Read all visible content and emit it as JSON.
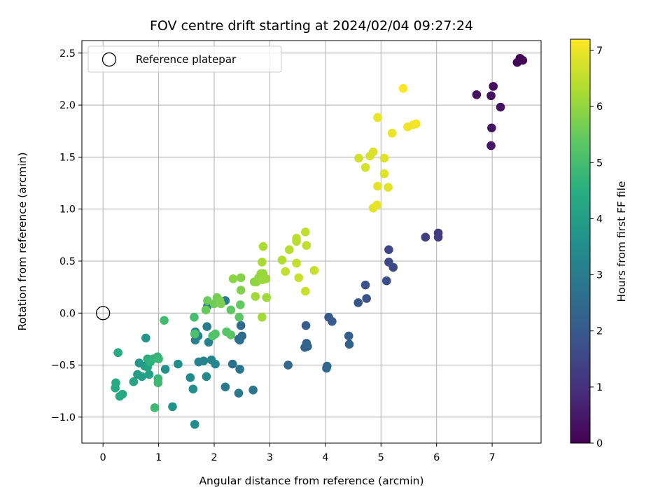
{
  "chart_data": {
    "type": "scatter",
    "title": "FOV centre drift starting at 2024/02/04 09:27:24",
    "xlabel": "Angular distance from reference (arcmin)",
    "ylabel": "Rotation from reference (arcmin)",
    "xlim": [
      -0.38,
      7.88
    ],
    "ylim": [
      -1.25,
      2.62
    ],
    "xticks": [
      0,
      1,
      2,
      3,
      4,
      5,
      6,
      7
    ],
    "yticks": [
      -1.0,
      -0.5,
      0.0,
      0.5,
      1.0,
      1.5,
      2.0,
      2.5
    ],
    "xtick_labels": [
      "0",
      "1",
      "2",
      "3",
      "4",
      "5",
      "6",
      "7"
    ],
    "ytick_labels": [
      "−1.0",
      "−0.5",
      "0.0",
      "0.5",
      "1.0",
      "1.5",
      "2.0",
      "2.5"
    ],
    "grid": true,
    "colormap": "viridis",
    "colorbar": {
      "label": "Hours from first FF file",
      "range": [
        0,
        7.2
      ],
      "ticks": [
        0,
        1,
        2,
        3,
        4,
        5,
        6,
        7
      ],
      "tick_labels": [
        "0",
        "1",
        "2",
        "3",
        "4",
        "5",
        "6",
        "7"
      ]
    },
    "legend": {
      "label": "Reference platepar",
      "position": "upper-left"
    },
    "reference_point": {
      "x": 0,
      "y": 0
    },
    "points": [
      {
        "x": 7.5,
        "y": 2.45,
        "h": 0.0
      },
      {
        "x": 7.55,
        "y": 2.43,
        "h": 0.05
      },
      {
        "x": 7.45,
        "y": 2.41,
        "h": 0.1
      },
      {
        "x": 7.02,
        "y": 2.18,
        "h": 0.2
      },
      {
        "x": 6.72,
        "y": 2.1,
        "h": 0.25
      },
      {
        "x": 6.98,
        "y": 2.09,
        "h": 0.3
      },
      {
        "x": 7.15,
        "y": 1.98,
        "h": 0.35
      },
      {
        "x": 6.99,
        "y": 1.78,
        "h": 0.4
      },
      {
        "x": 6.98,
        "y": 1.61,
        "h": 0.45
      },
      {
        "x": 6.03,
        "y": 0.77,
        "h": 1.2
      },
      {
        "x": 6.03,
        "y": 0.73,
        "h": 1.25
      },
      {
        "x": 5.8,
        "y": 0.73,
        "h": 1.3
      },
      {
        "x": 5.14,
        "y": 0.61,
        "h": 1.5
      },
      {
        "x": 5.14,
        "y": 0.49,
        "h": 1.55
      },
      {
        "x": 5.22,
        "y": 0.44,
        "h": 1.6
      },
      {
        "x": 5.1,
        "y": 0.31,
        "h": 1.7
      },
      {
        "x": 4.72,
        "y": 0.27,
        "h": 1.8
      },
      {
        "x": 4.74,
        "y": 0.14,
        "h": 1.85
      },
      {
        "x": 4.59,
        "y": 0.1,
        "h": 1.9
      },
      {
        "x": 4.06,
        "y": -0.04,
        "h": 2.0
      },
      {
        "x": 4.12,
        "y": -0.08,
        "h": 2.05
      },
      {
        "x": 3.65,
        "y": -0.12,
        "h": 2.1
      },
      {
        "x": 4.42,
        "y": -0.22,
        "h": 2.15
      },
      {
        "x": 4.43,
        "y": -0.3,
        "h": 2.2
      },
      {
        "x": 3.66,
        "y": -0.29,
        "h": 2.25
      },
      {
        "x": 3.68,
        "y": -0.32,
        "h": 2.3
      },
      {
        "x": 3.63,
        "y": -0.33,
        "h": 2.3
      },
      {
        "x": 3.33,
        "y": -0.5,
        "h": 2.35
      },
      {
        "x": 4.03,
        "y": -0.51,
        "h": 2.4
      },
      {
        "x": 4.02,
        "y": -0.53,
        "h": 2.45
      },
      {
        "x": 2.48,
        "y": -0.12,
        "h": 2.5
      },
      {
        "x": 2.5,
        "y": -0.22,
        "h": 2.55
      },
      {
        "x": 2.44,
        "y": -0.25,
        "h": 2.6
      },
      {
        "x": 2.46,
        "y": -0.26,
        "h": 2.6
      },
      {
        "x": 2.33,
        "y": -0.49,
        "h": 2.7
      },
      {
        "x": 2.46,
        "y": -0.54,
        "h": 2.75
      },
      {
        "x": 2.7,
        "y": -0.74,
        "h": 2.8
      },
      {
        "x": 2.44,
        "y": -0.77,
        "h": 2.85
      },
      {
        "x": 2.2,
        "y": -0.71,
        "h": 2.9
      },
      {
        "x": 2.2,
        "y": 0.12,
        "h": 2.95
      },
      {
        "x": 1.88,
        "y": 0.07,
        "h": 3.0
      },
      {
        "x": 1.87,
        "y": -0.13,
        "h": 3.0
      },
      {
        "x": 1.66,
        "y": -0.18,
        "h": 3.05
      },
      {
        "x": 1.71,
        "y": -0.22,
        "h": 3.1
      },
      {
        "x": 1.66,
        "y": -0.26,
        "h": 3.1
      },
      {
        "x": 1.9,
        "y": -0.28,
        "h": 3.15
      },
      {
        "x": 1.72,
        "y": -0.47,
        "h": 3.2
      },
      {
        "x": 1.81,
        "y": -0.46,
        "h": 3.2
      },
      {
        "x": 1.95,
        "y": -0.45,
        "h": 3.25
      },
      {
        "x": 2.02,
        "y": -0.49,
        "h": 3.3
      },
      {
        "x": 1.86,
        "y": -0.61,
        "h": 3.35
      },
      {
        "x": 1.57,
        "y": -0.62,
        "h": 3.4
      },
      {
        "x": 1.65,
        "y": -1.07,
        "h": 3.45
      },
      {
        "x": 1.35,
        "y": -0.49,
        "h": 3.5
      },
      {
        "x": 1.62,
        "y": -0.73,
        "h": 3.55
      },
      {
        "x": 1.12,
        "y": -0.54,
        "h": 3.6
      },
      {
        "x": 1.25,
        "y": -0.9,
        "h": 3.65
      },
      {
        "x": 0.77,
        "y": -0.24,
        "h": 3.75
      },
      {
        "x": 0.65,
        "y": -0.48,
        "h": 3.85
      },
      {
        "x": 0.75,
        "y": -0.51,
        "h": 3.9
      },
      {
        "x": 0.62,
        "y": -0.59,
        "h": 3.95
      },
      {
        "x": 0.7,
        "y": -0.61,
        "h": 4.0
      },
      {
        "x": 0.83,
        "y": -0.59,
        "h": 4.1
      },
      {
        "x": 0.8,
        "y": -0.52,
        "h": 4.15
      },
      {
        "x": 0.55,
        "y": -0.66,
        "h": 4.2
      },
      {
        "x": 0.35,
        "y": -0.78,
        "h": 4.25
      },
      {
        "x": 0.3,
        "y": -0.8,
        "h": 4.3
      },
      {
        "x": 0.22,
        "y": -0.72,
        "h": 4.35
      },
      {
        "x": 0.23,
        "y": -0.67,
        "h": 4.4
      },
      {
        "x": 0.27,
        "y": -0.38,
        "h": 4.45
      },
      {
        "x": 0.8,
        "y": -0.44,
        "h": 4.55
      },
      {
        "x": 0.85,
        "y": -0.47,
        "h": 4.6
      },
      {
        "x": 0.9,
        "y": -0.44,
        "h": 4.65
      },
      {
        "x": 0.98,
        "y": -0.42,
        "h": 4.7
      },
      {
        "x": 1.0,
        "y": -0.44,
        "h": 4.75
      },
      {
        "x": 0.99,
        "y": -0.63,
        "h": 4.8
      },
      {
        "x": 0.99,
        "y": -0.67,
        "h": 4.85
      },
      {
        "x": 0.93,
        "y": -0.91,
        "h": 4.9
      },
      {
        "x": 1.1,
        "y": -0.07,
        "h": 4.95
      },
      {
        "x": 1.64,
        "y": -0.04,
        "h": 5.0
      },
      {
        "x": 1.65,
        "y": -0.2,
        "h": 5.1
      },
      {
        "x": 1.97,
        "y": -0.22,
        "h": 5.15
      },
      {
        "x": 2.02,
        "y": -0.2,
        "h": 5.2
      },
      {
        "x": 2.22,
        "y": -0.18,
        "h": 5.25
      },
      {
        "x": 2.3,
        "y": -0.21,
        "h": 5.3
      },
      {
        "x": 2.45,
        "y": -0.04,
        "h": 5.35
      },
      {
        "x": 2.3,
        "y": 0.03,
        "h": 5.4
      },
      {
        "x": 2.47,
        "y": 0.08,
        "h": 5.45
      },
      {
        "x": 1.85,
        "y": 0.03,
        "h": 5.5
      },
      {
        "x": 1.88,
        "y": 0.12,
        "h": 5.55
      },
      {
        "x": 2.0,
        "y": 0.09,
        "h": 5.6
      },
      {
        "x": 2.05,
        "y": 0.15,
        "h": 5.65
      },
      {
        "x": 2.1,
        "y": 0.12,
        "h": 5.7
      },
      {
        "x": 2.12,
        "y": 0.09,
        "h": 5.75
      },
      {
        "x": 2.48,
        "y": 0.22,
        "h": 5.8
      },
      {
        "x": 2.48,
        "y": 0.34,
        "h": 5.85
      },
      {
        "x": 2.34,
        "y": 0.33,
        "h": 5.9
      },
      {
        "x": 2.72,
        "y": 0.3,
        "h": 5.95
      },
      {
        "x": 2.76,
        "y": 0.3,
        "h": 5.95
      },
      {
        "x": 2.8,
        "y": 0.34,
        "h": 6.0
      },
      {
        "x": 2.84,
        "y": 0.38,
        "h": 6.05
      },
      {
        "x": 2.88,
        "y": 0.38,
        "h": 6.05
      },
      {
        "x": 2.93,
        "y": 0.33,
        "h": 6.1
      },
      {
        "x": 2.87,
        "y": 0.32,
        "h": 6.1
      },
      {
        "x": 2.74,
        "y": 0.16,
        "h": 6.15
      },
      {
        "x": 2.94,
        "y": 0.15,
        "h": 6.15
      },
      {
        "x": 2.86,
        "y": -0.04,
        "h": 6.2
      },
      {
        "x": 2.86,
        "y": 0.49,
        "h": 6.25
      },
      {
        "x": 2.88,
        "y": 0.64,
        "h": 6.3
      },
      {
        "x": 3.22,
        "y": 0.51,
        "h": 6.35
      },
      {
        "x": 3.35,
        "y": 0.61,
        "h": 6.4
      },
      {
        "x": 3.48,
        "y": 0.72,
        "h": 6.45
      },
      {
        "x": 3.48,
        "y": 0.69,
        "h": 6.45
      },
      {
        "x": 3.64,
        "y": 0.78,
        "h": 6.5
      },
      {
        "x": 3.66,
        "y": 0.65,
        "h": 6.5
      },
      {
        "x": 3.28,
        "y": 0.4,
        "h": 6.55
      },
      {
        "x": 3.48,
        "y": 0.48,
        "h": 6.55
      },
      {
        "x": 3.52,
        "y": 0.34,
        "h": 6.6
      },
      {
        "x": 3.64,
        "y": 0.21,
        "h": 6.6
      },
      {
        "x": 3.8,
        "y": 0.41,
        "h": 6.6
      },
      {
        "x": 4.6,
        "y": 1.49,
        "h": 6.7
      },
      {
        "x": 4.72,
        "y": 1.4,
        "h": 6.75
      },
      {
        "x": 4.8,
        "y": 1.51,
        "h": 6.8
      },
      {
        "x": 4.86,
        "y": 1.55,
        "h": 6.8
      },
      {
        "x": 5.06,
        "y": 1.49,
        "h": 6.85
      },
      {
        "x": 5.06,
        "y": 1.34,
        "h": 6.85
      },
      {
        "x": 4.94,
        "y": 1.22,
        "h": 6.9
      },
      {
        "x": 5.13,
        "y": 1.21,
        "h": 6.9
      },
      {
        "x": 4.86,
        "y": 1.01,
        "h": 6.9
      },
      {
        "x": 4.93,
        "y": 1.04,
        "h": 6.95
      },
      {
        "x": 4.94,
        "y": 1.88,
        "h": 7.0
      },
      {
        "x": 5.2,
        "y": 1.73,
        "h": 7.0
      },
      {
        "x": 5.48,
        "y": 1.79,
        "h": 7.05
      },
      {
        "x": 5.58,
        "y": 1.81,
        "h": 7.05
      },
      {
        "x": 5.63,
        "y": 1.82,
        "h": 7.1
      },
      {
        "x": 5.4,
        "y": 2.16,
        "h": 7.15
      }
    ]
  }
}
